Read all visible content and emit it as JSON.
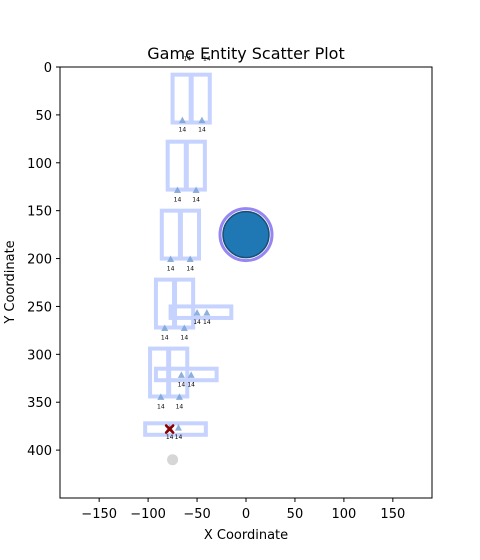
{
  "chart_data": {
    "type": "scatter",
    "title": "Game Entity Scatter Plot",
    "xlabel": "X Coordinate",
    "ylabel": "Y Coordinate",
    "xlim": [
      -190,
      190
    ],
    "ylim": [
      450,
      0
    ],
    "y_inverted": true,
    "grid": false,
    "x_ticks": [
      -150,
      -100,
      -50,
      0,
      50,
      100,
      150
    ],
    "y_ticks": [
      0,
      50,
      100,
      150,
      200,
      250,
      300,
      350,
      400
    ],
    "frame_outlines": [
      {
        "x": -75,
        "y": 8,
        "w": 38,
        "h": 50
      },
      {
        "x": -80,
        "y": 78,
        "w": 38,
        "h": 50
      },
      {
        "x": -86,
        "y": 150,
        "w": 38,
        "h": 50
      },
      {
        "x": -92,
        "y": 222,
        "w": 38,
        "h": 50
      },
      {
        "x": -98,
        "y": 294,
        "w": 38,
        "h": 50
      },
      {
        "x": -77,
        "y": 250,
        "w": 62,
        "h": 12
      },
      {
        "x": -92,
        "y": 315,
        "w": 62,
        "h": 12
      },
      {
        "x": -103,
        "y": 372,
        "w": 62,
        "h": 12
      }
    ],
    "enemies": [
      {
        "x": -65,
        "y": 56,
        "label": "14"
      },
      {
        "x": -45,
        "y": 56,
        "label": "14"
      },
      {
        "x": -70,
        "y": 129,
        "label": "14"
      },
      {
        "x": -51,
        "y": 129,
        "label": "14"
      },
      {
        "x": -77,
        "y": 201,
        "label": "14"
      },
      {
        "x": -57,
        "y": 201,
        "label": "14"
      },
      {
        "x": -83,
        "y": 273,
        "label": "14"
      },
      {
        "x": -63,
        "y": 273,
        "label": "14"
      },
      {
        "x": -50,
        "y": 257,
        "label": "14"
      },
      {
        "x": -40,
        "y": 257,
        "label": "14"
      },
      {
        "x": -66,
        "y": 322,
        "label": "14"
      },
      {
        "x": -56,
        "y": 322,
        "label": "14"
      },
      {
        "x": -87,
        "y": 345,
        "label": "14"
      },
      {
        "x": -68,
        "y": 345,
        "label": "14"
      },
      {
        "x": -78,
        "y": 377,
        "label": "14"
      },
      {
        "x": -69,
        "y": 377,
        "label": "14"
      }
    ],
    "top_labels": [
      {
        "x": -60,
        "y": -7,
        "label": "14"
      },
      {
        "x": -40,
        "y": -7,
        "label": "14"
      }
    ],
    "player": {
      "x": 0,
      "y": 175,
      "label": "player",
      "color": "#1f77b4",
      "ring_color": "#7b68ee"
    },
    "target": {
      "x": -78,
      "y": 378,
      "label": "target",
      "color": "#8b0000"
    },
    "ghost": {
      "x": -75,
      "y": 410,
      "label": "ghost",
      "color": "#cccccc"
    },
    "colors": {
      "frame": "#c6d3ff",
      "enemy": "#7aa2d6"
    }
  }
}
